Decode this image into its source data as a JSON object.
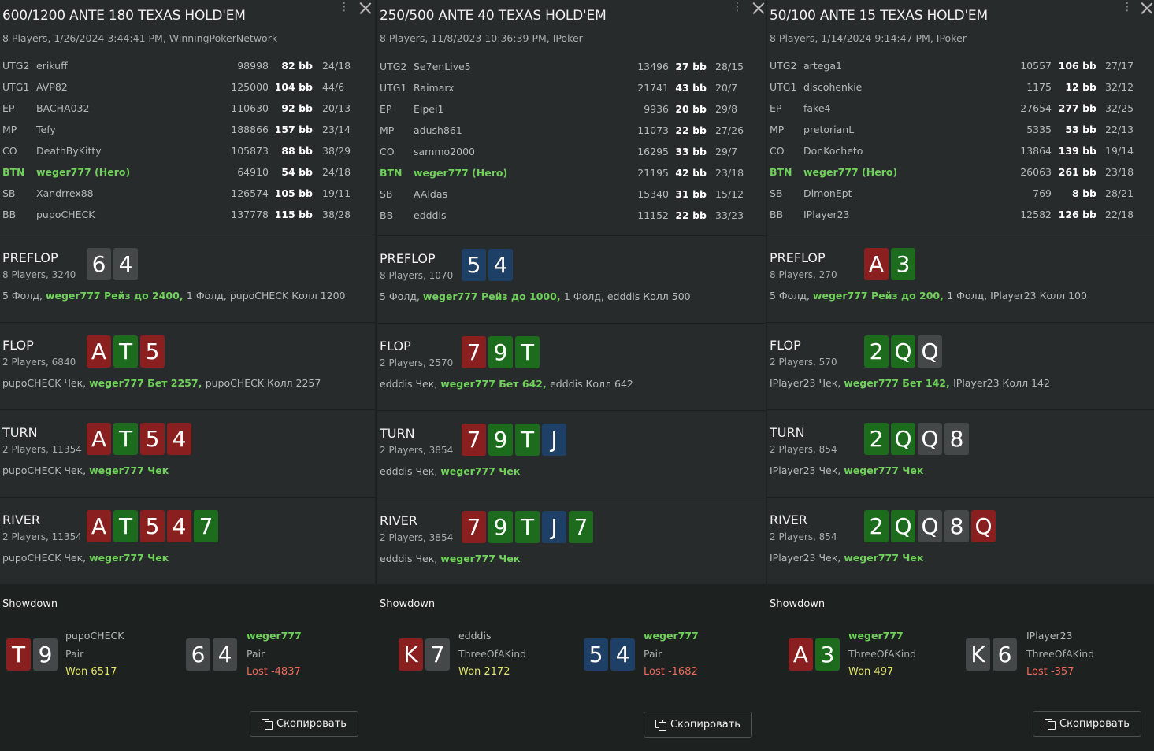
{
  "panels": [
    {
      "title": "600/1200 ANTE 180 TEXAS HOLD'EM",
      "subtitle": "8 Players, 1/26/2024 3:44:41 PM, WinningPokerNetwork",
      "menu_icon": "⋮",
      "players": [
        {
          "pos": "UTG2",
          "name": "erikuff",
          "chips": "98998",
          "bb": "82 bb",
          "stat": "24/18",
          "hero": false
        },
        {
          "pos": "UTG1",
          "name": "AVP82",
          "chips": "125000",
          "bb": "104 bb",
          "stat": "44/6",
          "hero": false
        },
        {
          "pos": "EP",
          "name": "BACHA032",
          "chips": "110630",
          "bb": "92 bb",
          "stat": "20/13",
          "hero": false
        },
        {
          "pos": "MP",
          "name": "Tefy",
          "chips": "188866",
          "bb": "157 bb",
          "stat": "23/14",
          "hero": false
        },
        {
          "pos": "CO",
          "name": "DeathByKitty",
          "chips": "105873",
          "bb": "88 bb",
          "stat": "38/29",
          "hero": false
        },
        {
          "pos": "BTN",
          "name": "weger777 (Hero)",
          "chips": "64910",
          "bb": "54 bb",
          "stat": "24/18",
          "hero": true
        },
        {
          "pos": "SB",
          "name": "Xandrrex88",
          "chips": "126574",
          "bb": "105 bb",
          "stat": "19/11",
          "hero": false
        },
        {
          "pos": "BB",
          "name": "pupoCHECK",
          "chips": "137778",
          "bb": "115 bb",
          "stat": "38/28",
          "hero": false
        }
      ],
      "streets": [
        {
          "name": "PREFLOP",
          "info": "8 Players, 3240",
          "cards": [
            {
              "r": "6",
              "s": "s"
            },
            {
              "r": "4",
              "s": "s"
            }
          ],
          "actions": [
            {
              "t": "5 Фолд, ",
              "h": false
            },
            {
              "t": "weger777 Рейз до 2400, ",
              "h": true
            },
            {
              "t": "1 Фолд, pupoCHECK Колл 1200",
              "h": false
            }
          ]
        },
        {
          "name": "FLOP",
          "info": "2 Players, 6840",
          "cards": [
            {
              "r": "A",
              "s": "h"
            },
            {
              "r": "T",
              "s": "c"
            },
            {
              "r": "5",
              "s": "h"
            }
          ],
          "actions": [
            {
              "t": "pupoCHECK Чек, ",
              "h": false
            },
            {
              "t": "weger777 Бет 2257, ",
              "h": true
            },
            {
              "t": "pupoCHECK Колл 2257",
              "h": false
            }
          ]
        },
        {
          "name": "TURN",
          "info": "2 Players, 11354",
          "cards": [
            {
              "r": "A",
              "s": "h"
            },
            {
              "r": "T",
              "s": "c"
            },
            {
              "r": "5",
              "s": "h"
            },
            {
              "r": "4",
              "s": "h"
            }
          ],
          "actions": [
            {
              "t": "pupoCHECK Чек, ",
              "h": false
            },
            {
              "t": "weger777 Чек",
              "h": true
            }
          ]
        },
        {
          "name": "RIVER",
          "info": "2 Players, 11354",
          "cards": [
            {
              "r": "A",
              "s": "h"
            },
            {
              "r": "T",
              "s": "c"
            },
            {
              "r": "5",
              "s": "h"
            },
            {
              "r": "4",
              "s": "h"
            },
            {
              "r": "7",
              "s": "c"
            }
          ],
          "actions": [
            {
              "t": "pupoCHECK Чек, ",
              "h": false
            },
            {
              "t": "weger777 Чек",
              "h": true
            }
          ]
        }
      ],
      "showdown": {
        "title": "Showdown",
        "players": [
          {
            "cards": [
              {
                "r": "T",
                "s": "h"
              },
              {
                "r": "9",
                "s": "s"
              }
            ],
            "name": "pupoCHECK",
            "hand": "Pair",
            "result": "Won 6517",
            "won": true,
            "hero": false
          },
          {
            "cards": [
              {
                "r": "6",
                "s": "s"
              },
              {
                "r": "4",
                "s": "s"
              }
            ],
            "name": "weger777",
            "hand": "Pair",
            "result": "Lost -4837",
            "won": false,
            "hero": true
          }
        ]
      },
      "copy_label": "Скопировать"
    },
    {
      "title": "250/500 ANTE 40 TEXAS HOLD'EM",
      "subtitle": "8 Players, 11/8/2023 10:36:39 PM, IPoker",
      "menu_icon": "⋮",
      "players": [
        {
          "pos": "UTG2",
          "name": "Se7enLive5",
          "chips": "13496",
          "bb": "27 bb",
          "stat": "28/15",
          "hero": false
        },
        {
          "pos": "UTG1",
          "name": "Raimarx",
          "chips": "21741",
          "bb": "43 bb",
          "stat": "20/7",
          "hero": false
        },
        {
          "pos": "EP",
          "name": "Eipei1",
          "chips": "9936",
          "bb": "20 bb",
          "stat": "29/8",
          "hero": false
        },
        {
          "pos": "MP",
          "name": "adush861",
          "chips": "11073",
          "bb": "22 bb",
          "stat": "27/26",
          "hero": false
        },
        {
          "pos": "CO",
          "name": "sammo2000",
          "chips": "16295",
          "bb": "33 bb",
          "stat": "29/7",
          "hero": false
        },
        {
          "pos": "BTN",
          "name": "weger777 (Hero)",
          "chips": "21195",
          "bb": "42 bb",
          "stat": "23/18",
          "hero": true
        },
        {
          "pos": "SB",
          "name": "AAldas",
          "chips": "15340",
          "bb": "31 bb",
          "stat": "15/12",
          "hero": false
        },
        {
          "pos": "BB",
          "name": "edddis",
          "chips": "11152",
          "bb": "22 bb",
          "stat": "33/23",
          "hero": false
        }
      ],
      "streets": [
        {
          "name": "PREFLOP",
          "info": "8 Players, 1070",
          "cards": [
            {
              "r": "5",
              "s": "d"
            },
            {
              "r": "4",
              "s": "d"
            }
          ],
          "actions": [
            {
              "t": "5 Фолд, ",
              "h": false
            },
            {
              "t": "weger777 Рейз до 1000, ",
              "h": true
            },
            {
              "t": "1 Фолд, edddis Колл 500",
              "h": false
            }
          ]
        },
        {
          "name": "FLOP",
          "info": "2 Players, 2570",
          "cards": [
            {
              "r": "7",
              "s": "h"
            },
            {
              "r": "9",
              "s": "c"
            },
            {
              "r": "T",
              "s": "c"
            }
          ],
          "actions": [
            {
              "t": "edddis Чек, ",
              "h": false
            },
            {
              "t": "weger777 Бет 642, ",
              "h": true
            },
            {
              "t": "edddis Колл 642",
              "h": false
            }
          ]
        },
        {
          "name": "TURN",
          "info": "2 Players, 3854",
          "cards": [
            {
              "r": "7",
              "s": "h"
            },
            {
              "r": "9",
              "s": "c"
            },
            {
              "r": "T",
              "s": "c"
            },
            {
              "r": "J",
              "s": "d"
            }
          ],
          "actions": [
            {
              "t": "edddis Чек, ",
              "h": false
            },
            {
              "t": "weger777 Чек",
              "h": true
            }
          ]
        },
        {
          "name": "RIVER",
          "info": "2 Players, 3854",
          "cards": [
            {
              "r": "7",
              "s": "h"
            },
            {
              "r": "9",
              "s": "c"
            },
            {
              "r": "T",
              "s": "c"
            },
            {
              "r": "J",
              "s": "d"
            },
            {
              "r": "7",
              "s": "c"
            }
          ],
          "actions": [
            {
              "t": "edddis Чек, ",
              "h": false
            },
            {
              "t": "weger777 Чек",
              "h": true
            }
          ]
        }
      ],
      "showdown": {
        "title": "Showdown",
        "players": [
          {
            "cards": [
              {
                "r": "K",
                "s": "h"
              },
              {
                "r": "7",
                "s": "s"
              }
            ],
            "name": "edddis",
            "hand": "ThreeOfAKind",
            "result": "Won 2172",
            "won": true,
            "hero": false
          },
          {
            "cards": [
              {
                "r": "5",
                "s": "d"
              },
              {
                "r": "4",
                "s": "d"
              }
            ],
            "name": "weger777",
            "hand": "Pair",
            "result": "Lost -1682",
            "won": false,
            "hero": true
          }
        ]
      },
      "copy_label": "Скопировать"
    },
    {
      "title": "50/100 ANTE 15 TEXAS HOLD'EM",
      "subtitle": "8 Players, 1/14/2024 9:14:47 PM, IPoker",
      "menu_icon": "⋮",
      "players": [
        {
          "pos": "UTG2",
          "name": "artega1",
          "chips": "10557",
          "bb": "106 bb",
          "stat": "27/17",
          "hero": false
        },
        {
          "pos": "UTG1",
          "name": "discohenkie",
          "chips": "1175",
          "bb": "12 bb",
          "stat": "32/12",
          "hero": false
        },
        {
          "pos": "EP",
          "name": "fake4",
          "chips": "27654",
          "bb": "277 bb",
          "stat": "32/25",
          "hero": false
        },
        {
          "pos": "MP",
          "name": "pretorianL",
          "chips": "5335",
          "bb": "53 bb",
          "stat": "22/13",
          "hero": false
        },
        {
          "pos": "CO",
          "name": "DonKocheto",
          "chips": "13864",
          "bb": "139 bb",
          "stat": "19/14",
          "hero": false
        },
        {
          "pos": "BTN",
          "name": "weger777 (Hero)",
          "chips": "26063",
          "bb": "261 bb",
          "stat": "23/18",
          "hero": true
        },
        {
          "pos": "SB",
          "name": "DimonEpt",
          "chips": "769",
          "bb": "8 bb",
          "stat": "28/21",
          "hero": false
        },
        {
          "pos": "BB",
          "name": "IPlayer23",
          "chips": "12582",
          "bb": "126 bb",
          "stat": "22/18",
          "hero": false
        }
      ],
      "streets": [
        {
          "name": "PREFLOP",
          "info": "8 Players, 270",
          "cards": [
            {
              "r": "A",
              "s": "h"
            },
            {
              "r": "3",
              "s": "c"
            }
          ],
          "actions": [
            {
              "t": "5 Фолд, ",
              "h": false
            },
            {
              "t": "weger777 Рейз до 200, ",
              "h": true
            },
            {
              "t": "1 Фолд, IPlayer23 Колл 100",
              "h": false
            }
          ]
        },
        {
          "name": "FLOP",
          "info": "2 Players, 570",
          "cards": [
            {
              "r": "2",
              "s": "c"
            },
            {
              "r": "Q",
              "s": "c"
            },
            {
              "r": "Q",
              "s": "s"
            }
          ],
          "actions": [
            {
              "t": "IPlayer23 Чек, ",
              "h": false
            },
            {
              "t": "weger777 Бет 142, ",
              "h": true
            },
            {
              "t": "IPlayer23 Колл 142",
              "h": false
            }
          ]
        },
        {
          "name": "TURN",
          "info": "2 Players, 854",
          "cards": [
            {
              "r": "2",
              "s": "c"
            },
            {
              "r": "Q",
              "s": "c"
            },
            {
              "r": "Q",
              "s": "s"
            },
            {
              "r": "8",
              "s": "s"
            }
          ],
          "actions": [
            {
              "t": "IPlayer23 Чек, ",
              "h": false
            },
            {
              "t": "weger777 Чек",
              "h": true
            }
          ]
        },
        {
          "name": "RIVER",
          "info": "2 Players, 854",
          "cards": [
            {
              "r": "2",
              "s": "c"
            },
            {
              "r": "Q",
              "s": "c"
            },
            {
              "r": "Q",
              "s": "s"
            },
            {
              "r": "8",
              "s": "s"
            },
            {
              "r": "Q",
              "s": "h"
            }
          ],
          "actions": [
            {
              "t": "IPlayer23 Чек, ",
              "h": false
            },
            {
              "t": "weger777 Чек",
              "h": true
            }
          ]
        }
      ],
      "showdown": {
        "title": "Showdown",
        "players": [
          {
            "cards": [
              {
                "r": "A",
                "s": "h"
              },
              {
                "r": "3",
                "s": "c"
              }
            ],
            "name": "weger777",
            "hand": "ThreeOfAKind",
            "result": "Won 497",
            "won": true,
            "hero": true
          },
          {
            "cards": [
              {
                "r": "K",
                "s": "s"
              },
              {
                "r": "6",
                "s": "s"
              }
            ],
            "name": "IPlayer23",
            "hand": "ThreeOfAKind",
            "result": "Lost -357",
            "won": false,
            "hero": false
          }
        ]
      },
      "copy_label": "Скопировать"
    }
  ]
}
